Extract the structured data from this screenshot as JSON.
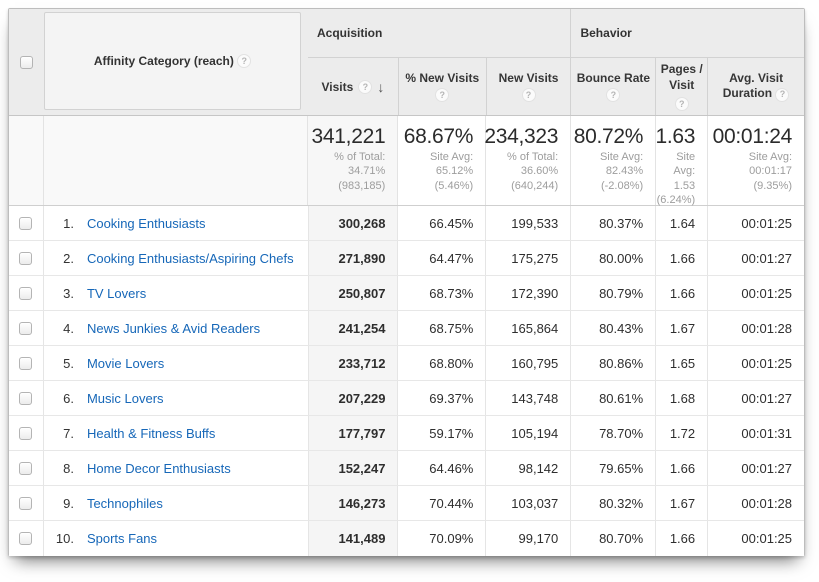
{
  "header": {
    "dimension_label": "Affinity Category (reach)",
    "help_glyph": "?",
    "sort_arrow": "↓",
    "groups": {
      "acquisition": "Acquisition",
      "behavior": "Behavior"
    },
    "columns": {
      "visits": "Visits",
      "new_visits_pct": "% New Visits",
      "new_visits": "New Visits",
      "bounce_rate": "Bounce Rate",
      "pages_visit": "Pages / Visit",
      "avg_duration": "Avg. Visit Duration"
    }
  },
  "summary": {
    "visits": {
      "value": "341,221",
      "sub": "% of Total:\n34.71%\n(983,185)"
    },
    "new_visits_pct": {
      "value": "68.67%",
      "sub": "Site Avg:\n65.12%\n(5.46%)"
    },
    "new_visits": {
      "value": "234,323",
      "sub": "% of Total:\n36.60%\n(640,244)"
    },
    "bounce_rate": {
      "value": "80.72%",
      "sub": "Site Avg:\n82.43%\n(-2.08%)"
    },
    "pages_visit": {
      "value": "1.63",
      "sub": "Site\nAvg:\n1.53\n(6.24%)"
    },
    "avg_duration": {
      "value": "00:01:24",
      "sub": "Site Avg:\n00:01:17\n(9.35%)"
    }
  },
  "rows": [
    {
      "num": "1.",
      "name": "Cooking Enthusiasts",
      "visits": "300,268",
      "new_visits_pct": "66.45%",
      "new_visits": "199,533",
      "bounce_rate": "80.37%",
      "pages_visit": "1.64",
      "avg_duration": "00:01:25"
    },
    {
      "num": "2.",
      "name": "Cooking Enthusiasts/Aspiring Chefs",
      "visits": "271,890",
      "new_visits_pct": "64.47%",
      "new_visits": "175,275",
      "bounce_rate": "80.00%",
      "pages_visit": "1.66",
      "avg_duration": "00:01:27"
    },
    {
      "num": "3.",
      "name": "TV Lovers",
      "visits": "250,807",
      "new_visits_pct": "68.73%",
      "new_visits": "172,390",
      "bounce_rate": "80.79%",
      "pages_visit": "1.66",
      "avg_duration": "00:01:25"
    },
    {
      "num": "4.",
      "name": "News Junkies & Avid Readers",
      "visits": "241,254",
      "new_visits_pct": "68.75%",
      "new_visits": "165,864",
      "bounce_rate": "80.43%",
      "pages_visit": "1.67",
      "avg_duration": "00:01:28"
    },
    {
      "num": "5.",
      "name": "Movie Lovers",
      "visits": "233,712",
      "new_visits_pct": "68.80%",
      "new_visits": "160,795",
      "bounce_rate": "80.86%",
      "pages_visit": "1.65",
      "avg_duration": "00:01:25"
    },
    {
      "num": "6.",
      "name": "Music Lovers",
      "visits": "207,229",
      "new_visits_pct": "69.37%",
      "new_visits": "143,748",
      "bounce_rate": "80.61%",
      "pages_visit": "1.68",
      "avg_duration": "00:01:27"
    },
    {
      "num": "7.",
      "name": "Health & Fitness Buffs",
      "visits": "177,797",
      "new_visits_pct": "59.17%",
      "new_visits": "105,194",
      "bounce_rate": "78.70%",
      "pages_visit": "1.72",
      "avg_duration": "00:01:31"
    },
    {
      "num": "8.",
      "name": "Home Decor Enthusiasts",
      "visits": "152,247",
      "new_visits_pct": "64.46%",
      "new_visits": "98,142",
      "bounce_rate": "79.65%",
      "pages_visit": "1.66",
      "avg_duration": "00:01:27"
    },
    {
      "num": "9.",
      "name": "Technophiles",
      "visits": "146,273",
      "new_visits_pct": "70.44%",
      "new_visits": "103,037",
      "bounce_rate": "80.32%",
      "pages_visit": "1.67",
      "avg_duration": "00:01:28"
    },
    {
      "num": "10.",
      "name": "Sports Fans",
      "visits": "141,489",
      "new_visits_pct": "70.09%",
      "new_visits": "99,170",
      "bounce_rate": "80.70%",
      "pages_visit": "1.66",
      "avg_duration": "00:01:25"
    }
  ]
}
